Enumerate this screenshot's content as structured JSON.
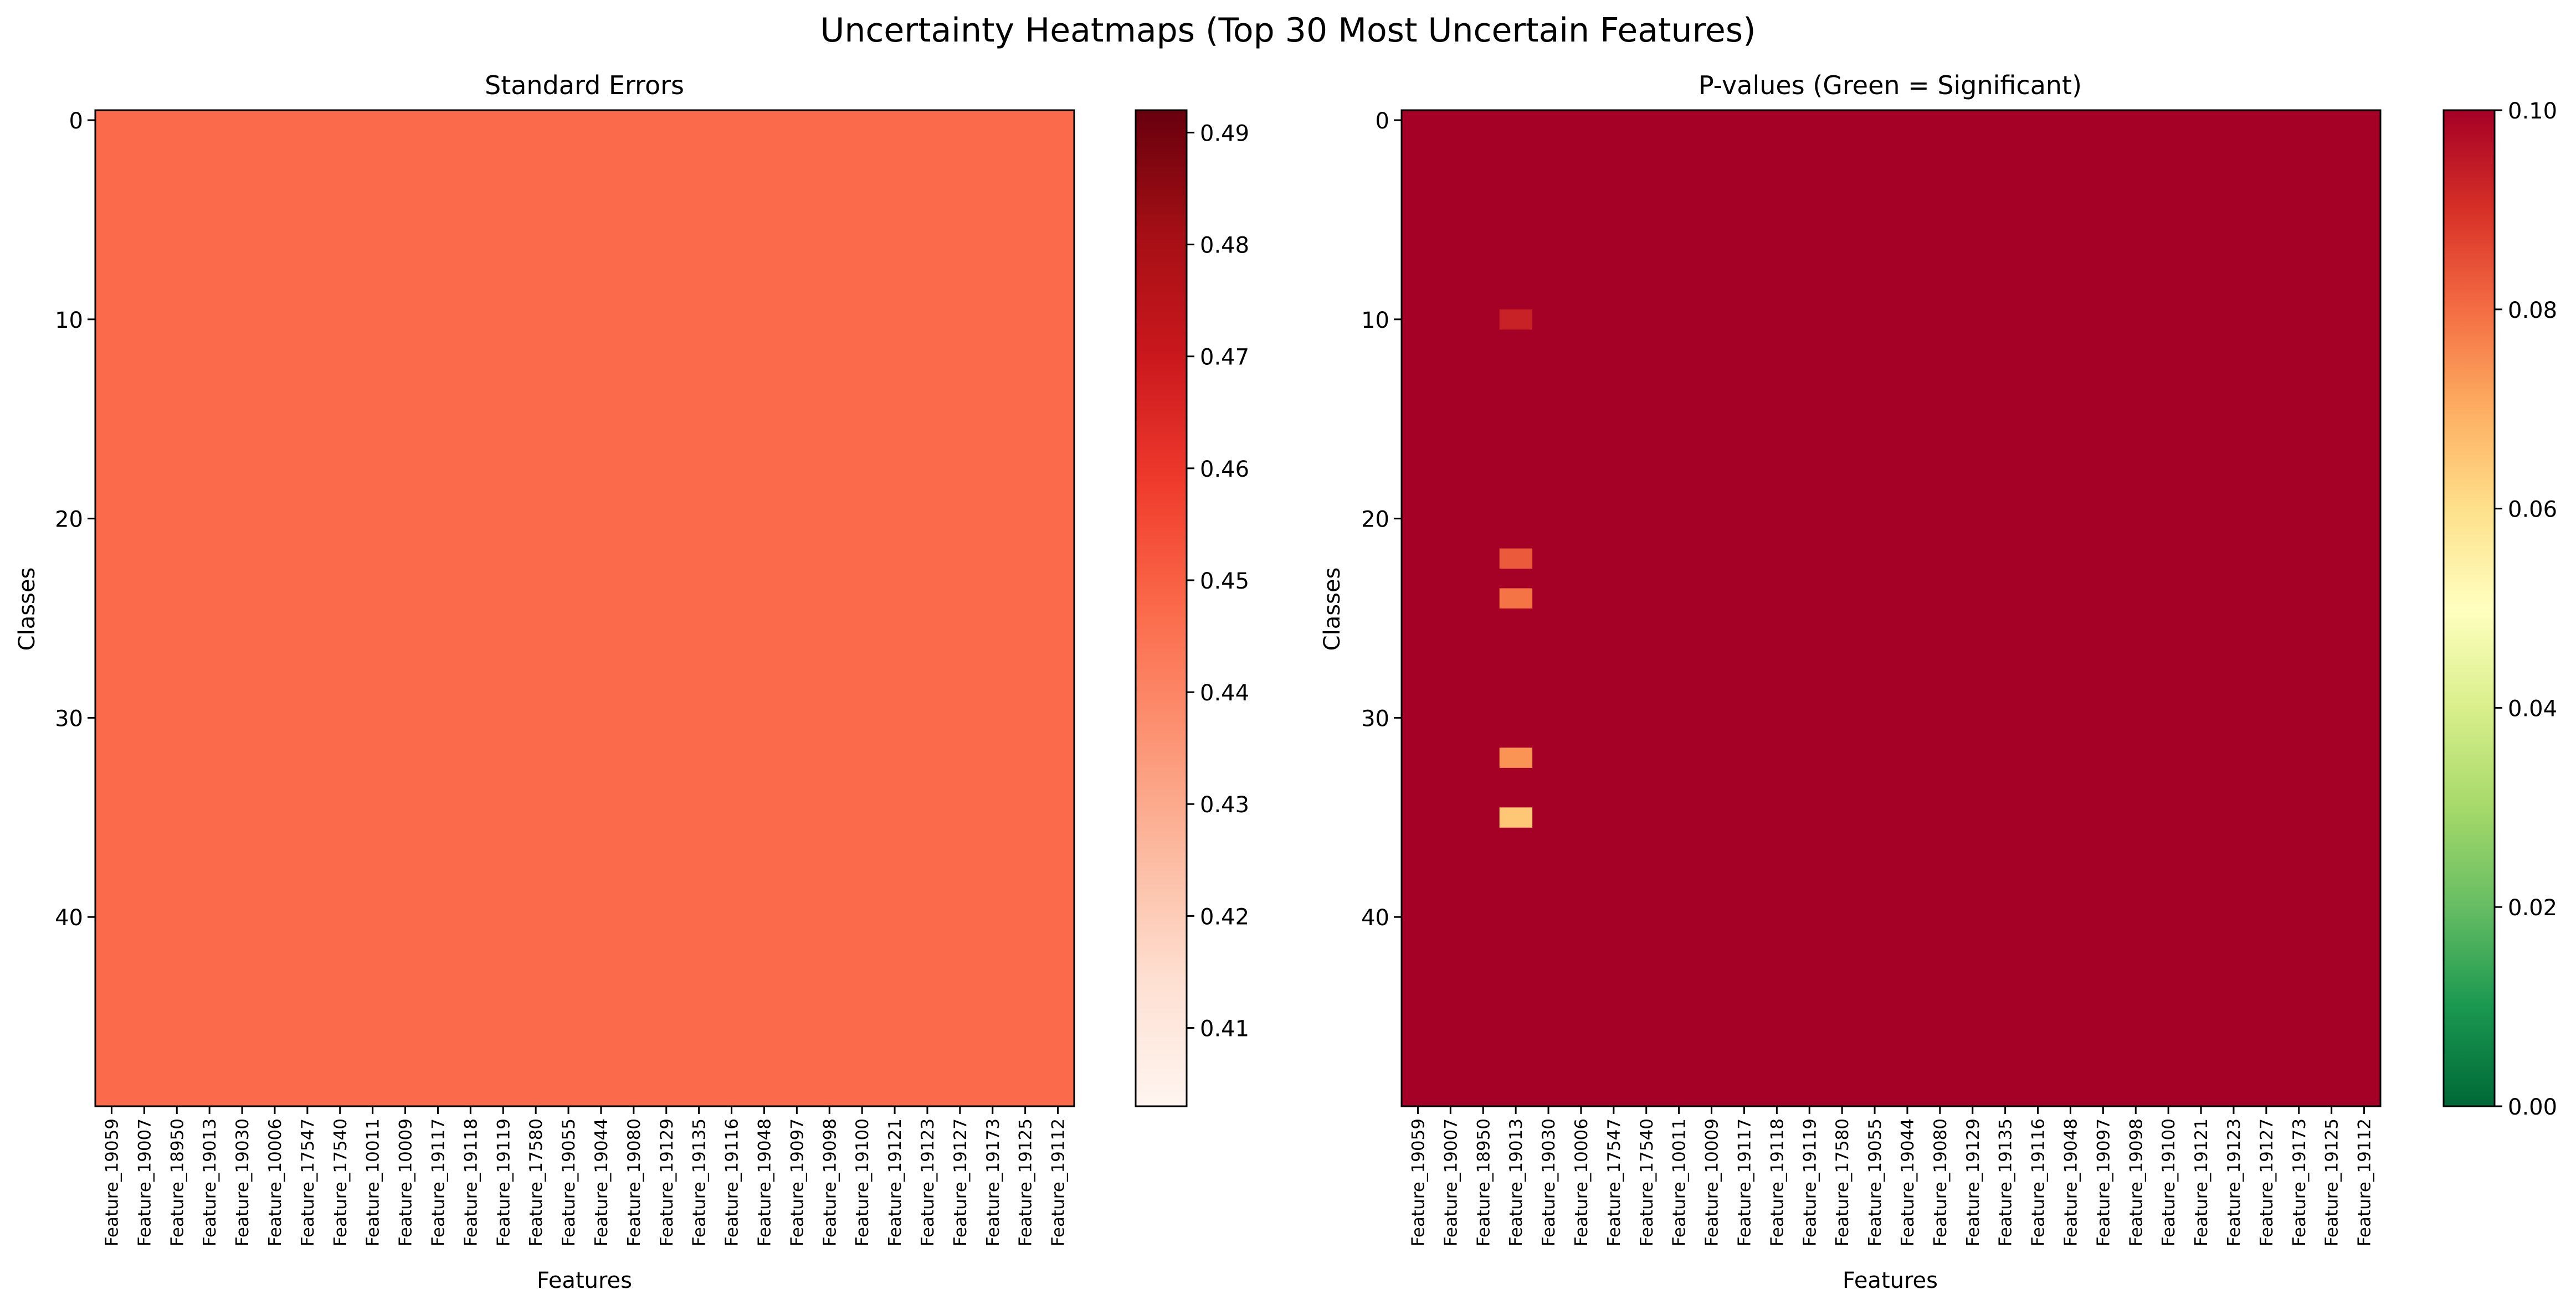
{
  "suptitle": "Uncertainty Heatmaps (Top 30 Most Uncertain Features)",
  "features": [
    "Feature_19059",
    "Feature_19007",
    "Feature_18950",
    "Feature_19013",
    "Feature_19030",
    "Feature_10006",
    "Feature_17547",
    "Feature_17540",
    "Feature_10011",
    "Feature_10009",
    "Feature_19117",
    "Feature_19118",
    "Feature_19119",
    "Feature_17580",
    "Feature_19055",
    "Feature_19044",
    "Feature_19080",
    "Feature_19129",
    "Feature_19135",
    "Feature_19116",
    "Feature_19048",
    "Feature_19097",
    "Feature_19098",
    "Feature_19100",
    "Feature_19121",
    "Feature_19123",
    "Feature_19127",
    "Feature_19173",
    "Feature_19125",
    "Feature_19112"
  ],
  "chart_data": [
    {
      "type": "heatmap",
      "title": "Standard Errors",
      "xlabel": "Features",
      "ylabel": "Classes",
      "rows": 50,
      "cols": 30,
      "y_ticks": [
        "0",
        "10",
        "20",
        "30",
        "40"
      ],
      "uniform_value": 0.4475,
      "colormap": "Reds",
      "colorbar": {
        "min": 0.403,
        "max": 0.492,
        "ticks": [
          "0.41",
          "0.42",
          "0.43",
          "0.44",
          "0.45",
          "0.46",
          "0.47",
          "0.48",
          "0.49"
        ]
      }
    },
    {
      "type": "heatmap",
      "title": "P-values (Green = Significant)",
      "xlabel": "Features",
      "ylabel": "Classes",
      "rows": 50,
      "cols": 30,
      "y_ticks": [
        "0",
        "10",
        "20",
        "30",
        "40"
      ],
      "default_value": 0.1,
      "cells": [
        {
          "row": 10,
          "col": 3,
          "value": 0.093
        },
        {
          "row": 22,
          "col": 3,
          "value": 0.083
        },
        {
          "row": 24,
          "col": 3,
          "value": 0.079
        },
        {
          "row": 32,
          "col": 3,
          "value": 0.074
        },
        {
          "row": 35,
          "col": 3,
          "value": 0.065
        }
      ],
      "colormap": "RdYlGn",
      "colorbar": {
        "min": 0.0,
        "max": 0.1,
        "ticks": [
          "0.00",
          "0.02",
          "0.04",
          "0.06",
          "0.08",
          "0.10"
        ]
      }
    }
  ]
}
